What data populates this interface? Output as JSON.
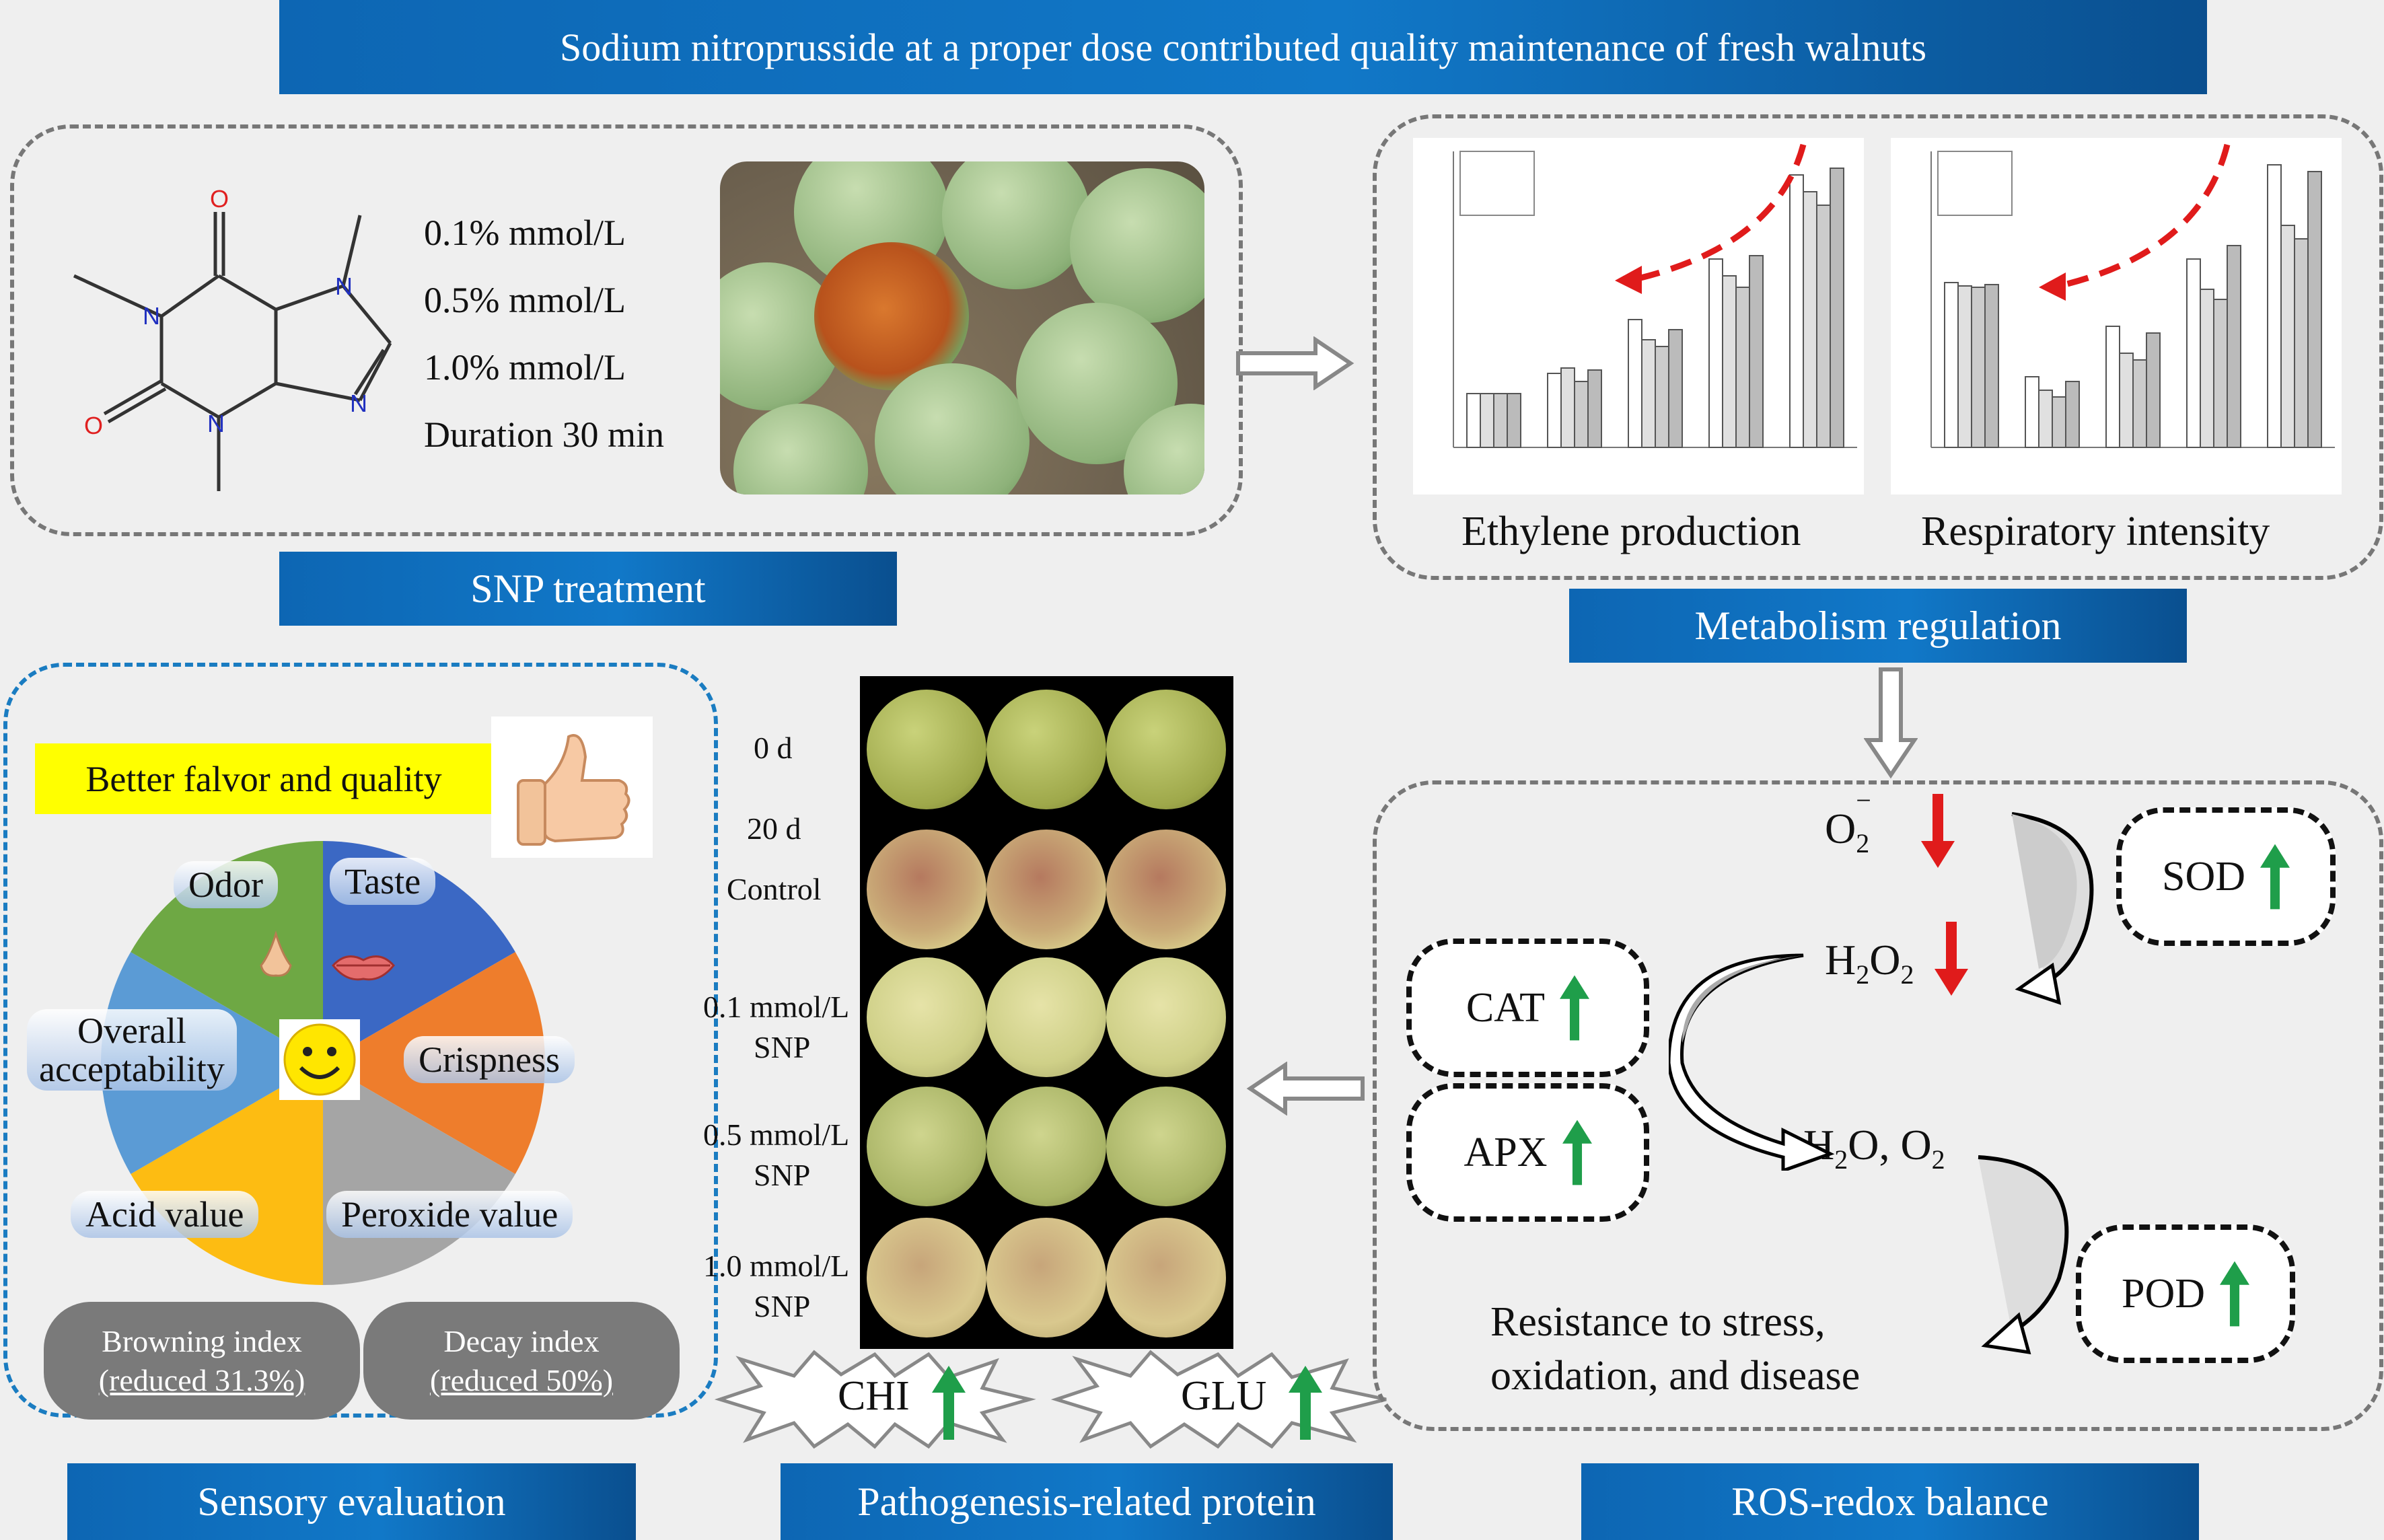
{
  "title": "Sodium nitroprusside at a proper dose contributed quality maintenance of fresh walnuts",
  "snp": {
    "label": "SNP treatment",
    "doses": [
      "0.1% mmol/L",
      "0.5% mmol/L",
      "1.0% mmol/L"
    ],
    "duration": "Duration 30 min",
    "atoms": {
      "o": "O",
      "n": "N"
    }
  },
  "metabolism": {
    "label": "Metabolism regulation",
    "ethylene_caption": "Ethylene production",
    "respiration_caption": "Respiratory intensity"
  },
  "sensory": {
    "label": "Sensory evaluation",
    "header": "Better falvor and quality",
    "attributes": [
      "Odor",
      "Taste",
      "Crispness",
      "Peroxide value",
      "Acid value",
      "Overall",
      "acceptability"
    ],
    "browning": {
      "title": "Browning index",
      "value": "(reduced 31.3%)"
    },
    "decay": {
      "title": "Decay index",
      "value": "(reduced 50%)"
    }
  },
  "prp": {
    "label": "Pathogenesis-related protein",
    "rows": [
      "0 d",
      "20 d",
      "Control",
      "0.1 mmol/L",
      "SNP",
      "0.5 mmol/L",
      "SNP",
      "1.0 mmol/L",
      "SNP"
    ],
    "chi": "CHI",
    "glu": "GLU"
  },
  "ros": {
    "label": "ROS-redox balance",
    "o2": "O",
    "o2_sub": "2",
    "o2_sup": "−",
    "h2o2_a": "H",
    "h2o2_b": "2",
    "h2o2_c": "O",
    "h2o2_d": "2",
    "h2o_a": "H",
    "h2o_b": "2",
    "h2o_c": "O, O",
    "h2o_d": "2",
    "enzymes": {
      "sod": "SOD",
      "cat": "CAT",
      "apx": "APX",
      "pod": "POD"
    },
    "resistance_1": "Resistance to stress,",
    "resistance_2": "oxidation, and disease"
  },
  "colors": {
    "banner": "#0d66b3",
    "down": "#e01b1b",
    "up": "#1f9e4a"
  }
}
